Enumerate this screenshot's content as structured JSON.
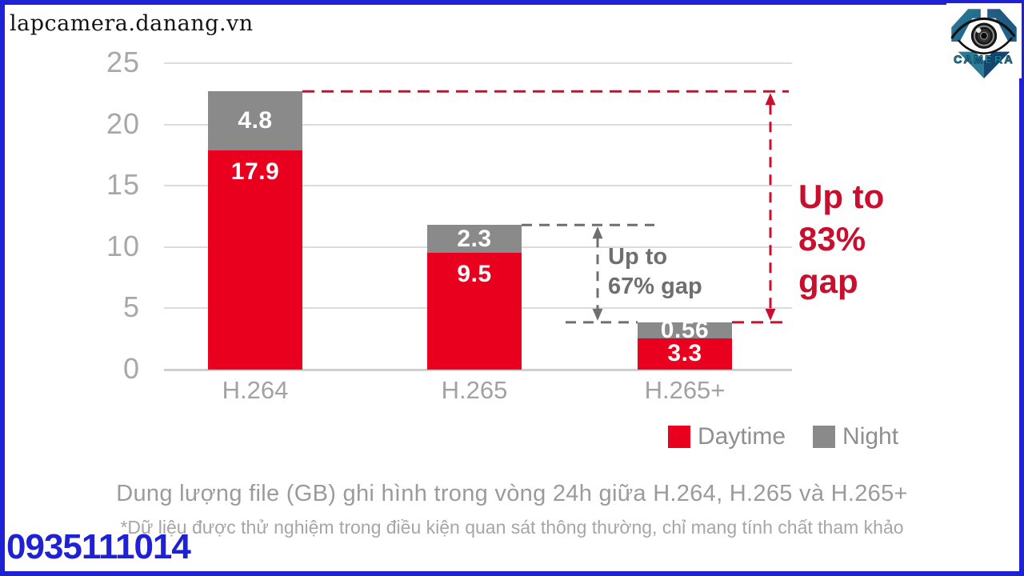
{
  "watermark": "lapcamera.danang.vn",
  "phone_number": "0935111014",
  "logo": {
    "label": "CAMERA"
  },
  "chart_data": {
    "type": "bar",
    "stacked": true,
    "title": "Dung lượng file (GB) ghi hình trong vòng 24h giữa H.264, H.265 và H.265+",
    "footnote": "*Dữ liệu được thử nghiệm trong điều kiện quan sát thông thường, chỉ mang tính chất tham khảo",
    "categories": [
      "H.264",
      "H.265",
      "H.265+"
    ],
    "series": [
      {
        "name": "Daytime",
        "color": "#e8001e",
        "values": [
          17.9,
          9.5,
          3.3
        ]
      },
      {
        "name": "Night",
        "color": "#8a8a8a",
        "values": [
          4.8,
          2.3,
          0.56
        ]
      }
    ],
    "totals": [
      22.7,
      11.8,
      3.86
    ],
    "ylim": [
      0,
      25
    ],
    "yticks": [
      0,
      5,
      10,
      15,
      20,
      25
    ],
    "grid": true,
    "legend_position": "bottom-right",
    "annotations": [
      {
        "lines": [
          "Up to",
          "67% gap"
        ],
        "percent": 67,
        "between": [
          "H.265",
          "H.265+"
        ],
        "color": "#6f6f6f"
      },
      {
        "lines": [
          "Up to",
          "83%",
          "gap"
        ],
        "percent": 83,
        "between": [
          "H.264",
          "H.265+"
        ],
        "color": "#c8102e"
      }
    ]
  }
}
